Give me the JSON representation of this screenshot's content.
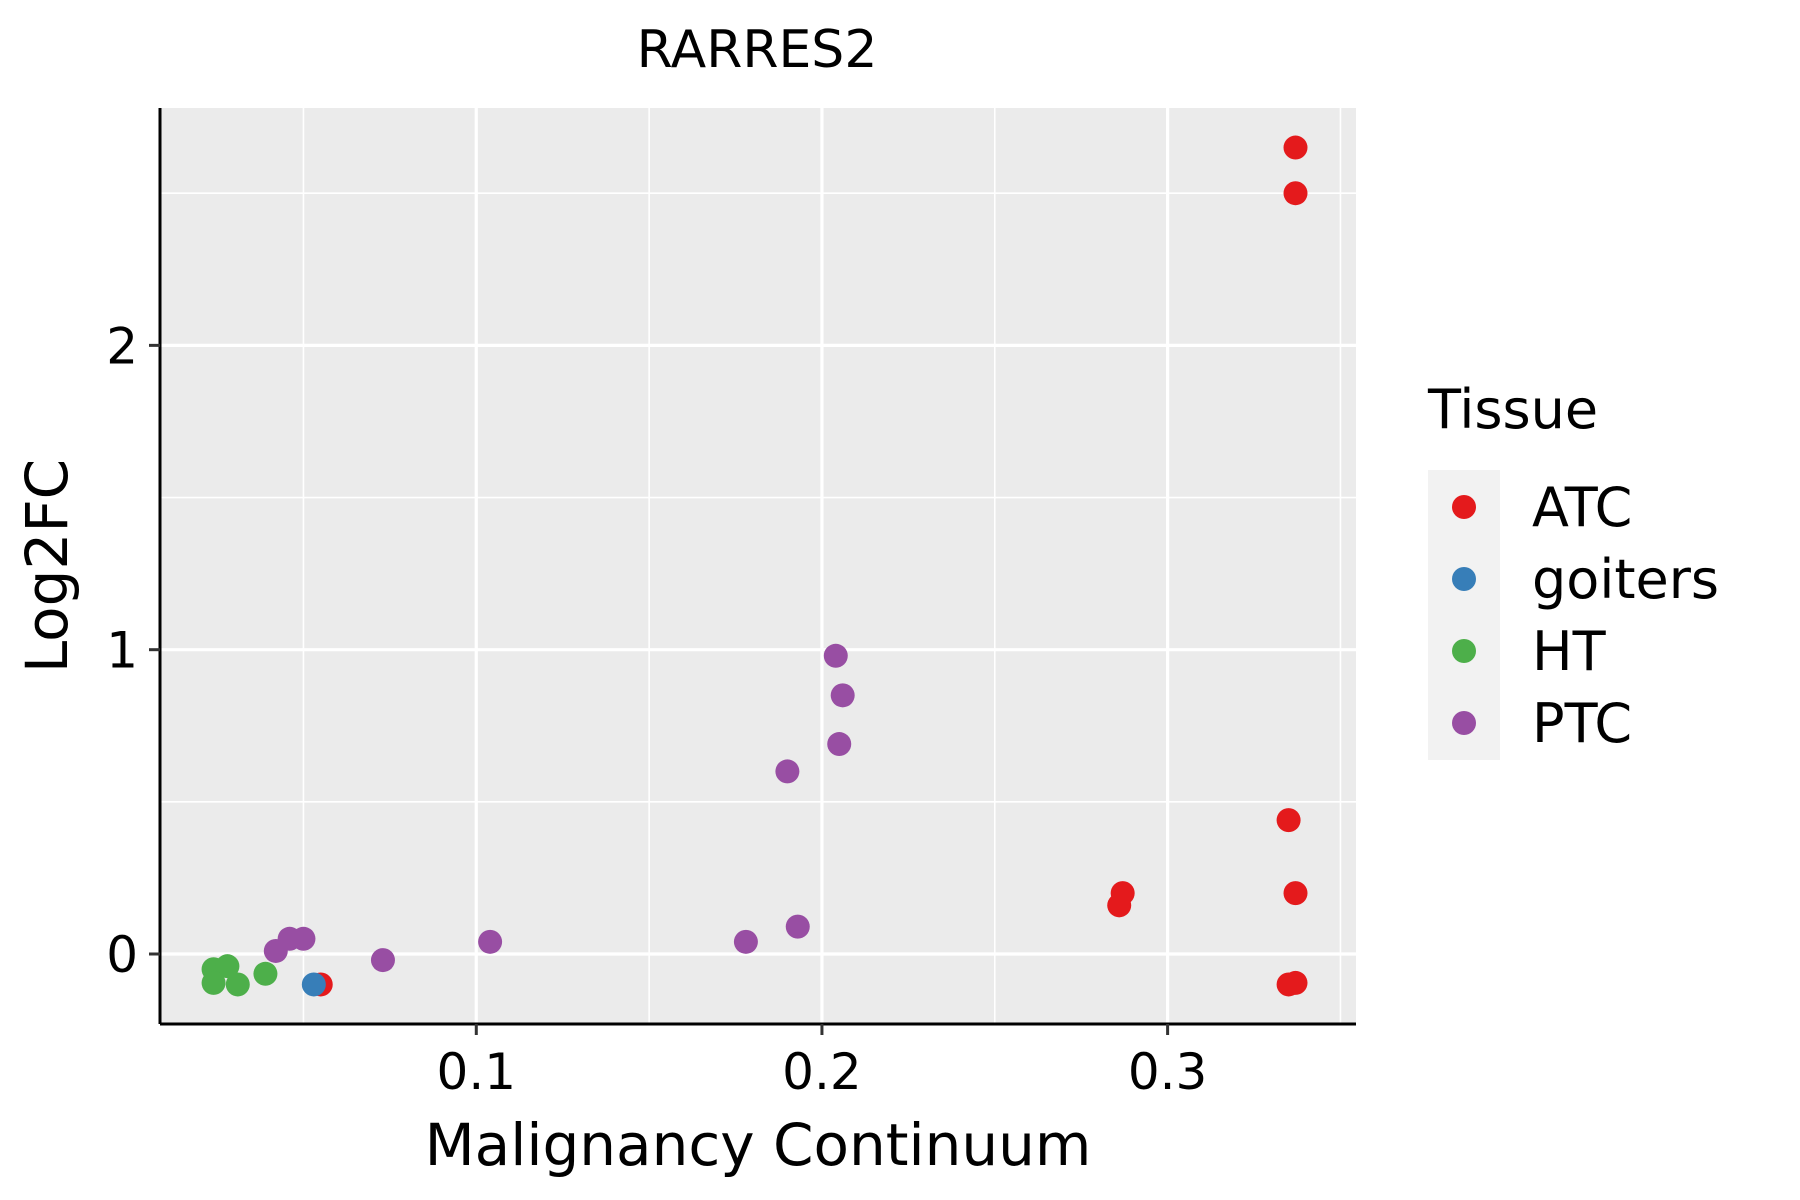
{
  "chart_data": {
    "type": "scatter",
    "title": "RARRES2",
    "xlabel": "Malignancy Continuum",
    "ylabel": "Log2FC",
    "xlim": [
      0.0085,
      0.3545
    ],
    "ylim": [
      -0.23,
      2.78
    ],
    "x_ticks": [
      0.1,
      0.2,
      0.3
    ],
    "x_tick_labels": [
      "0.1",
      "0.2",
      "0.3"
    ],
    "y_ticks": [
      0,
      1,
      2
    ],
    "y_tick_labels": [
      "0",
      "1",
      "2"
    ],
    "x_minor_ticks": [
      0.05,
      0.15,
      0.25,
      0.35
    ],
    "y_minor_ticks": [
      0.5,
      1.5,
      2.5
    ],
    "grid": true,
    "panel_background": "#EBEBEB",
    "legend": {
      "title": "Tissue",
      "position": "right",
      "entries": [
        "ATC",
        "goiters",
        "HT",
        "PTC"
      ]
    },
    "series": [
      {
        "name": "ATC",
        "color": "#E41A1C",
        "points": [
          [
            0.337,
            2.65
          ],
          [
            0.337,
            2.5
          ],
          [
            0.335,
            0.44
          ],
          [
            0.337,
            0.2
          ],
          [
            0.287,
            0.2
          ],
          [
            0.286,
            0.16
          ],
          [
            0.335,
            -0.1
          ],
          [
            0.337,
            -0.095
          ],
          [
            0.055,
            -0.1
          ]
        ]
      },
      {
        "name": "goiters",
        "color": "#377EB8",
        "points": [
          [
            0.053,
            -0.1
          ]
        ]
      },
      {
        "name": "HT",
        "color": "#4DAF4A",
        "points": [
          [
            0.024,
            -0.05
          ],
          [
            0.028,
            -0.04
          ],
          [
            0.024,
            -0.095
          ],
          [
            0.031,
            -0.1
          ],
          [
            0.039,
            -0.065
          ]
        ]
      },
      {
        "name": "PTC",
        "color": "#984EA3",
        "points": [
          [
            0.204,
            0.98
          ],
          [
            0.206,
            0.85
          ],
          [
            0.205,
            0.69
          ],
          [
            0.19,
            0.6
          ],
          [
            0.193,
            0.09
          ],
          [
            0.178,
            0.04
          ],
          [
            0.104,
            0.04
          ],
          [
            0.073,
            -0.02
          ],
          [
            0.046,
            0.05
          ],
          [
            0.05,
            0.05
          ],
          [
            0.042,
            0.01
          ]
        ]
      }
    ]
  }
}
